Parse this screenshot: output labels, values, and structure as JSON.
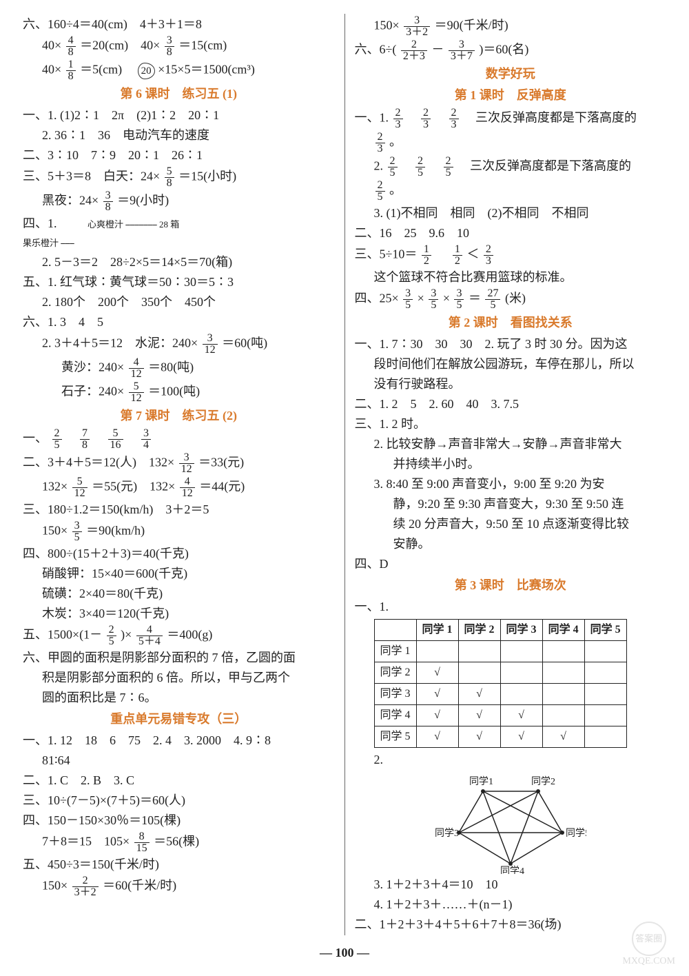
{
  "page_number": "100",
  "watermark": {
    "top": "答案圈",
    "url": "MXQE.COM"
  },
  "left": {
    "l1a": "六、160÷4＝40(cm)　4＋3＋1＝8",
    "l1b_pre": "40×",
    "l1b_mid": "＝20(cm)　40×",
    "l1b_post": "＝15(cm)",
    "l1c_pre": "40×",
    "l1c_mid": "＝5(cm)　",
    "l1c_carrot": "20",
    "l1c_post": "×15×5＝1500(cm³)",
    "sec6": "第 6 课时　练习五 (1)",
    "s6_1": "一、1. (1)2∶1　2π　(2)1∶2　20∶1",
    "s6_2": "2. 36∶1　36　电动汽车的速度",
    "s6_3": "二、3∶10　7∶9　20∶1　26∶1",
    "s6_4a": "三、5＋3＝8　白天：24×",
    "s6_4b": "＝15(小时)",
    "s6_5a": "黑夜：24×",
    "s6_5b": "＝9(小时)",
    "s6_6top": "心爽橙汁",
    "s6_6bot": "果乐橙汁",
    "s6_6num": "28 箱",
    "s6_6a": "四、1.",
    "s6_7": "2. 5－3＝2　28÷2×5＝14×5＝70(箱)",
    "s6_8": "五、1. 红气球∶黄气球＝50∶30＝5∶3",
    "s6_9": "2. 180个　200个　350个　450个",
    "s6_10": "六、1. 3　4　5",
    "s6_11a": "2. 3＋4＋5＝12　水泥：240×",
    "s6_11b": "＝60(吨)",
    "s6_12a": "黄沙：240×",
    "s6_12b": "＝80(吨)",
    "s6_13a": "石子：240×",
    "s6_13b": "＝100(吨)",
    "sec7": "第 7 课时　练习五 (2)",
    "s7_1": "一、",
    "s7_2a": "二、3＋4＋5＝12(人)　132×",
    "s7_2b": "＝33(元)",
    "s7_3a": "132×",
    "s7_3b": "＝55(元)　132×",
    "s7_3c": "＝44(元)",
    "s7_4": "三、180÷1.2＝150(km/h)　3＋2＝5",
    "s7_5a": "150×",
    "s7_5b": "＝90(km/h)",
    "s7_6": "四、800÷(15＋2＋3)＝40(千克)",
    "s7_7": "硝酸钾：15×40＝600(千克)",
    "s7_8": "硫磺：2×40＝80(千克)",
    "s7_9": "木炭：3×40＝120(千克)",
    "s7_10a": "五、1500×(1－",
    "s7_10b": ")×",
    "s7_10c": "＝400(g)",
    "s7_11": "六、甲圆的面积是阴影部分面积的 7 倍，乙圆的面",
    "s7_12": "积是阴影部分面积的 6 倍。所以，甲与乙两个",
    "s7_13": "圆的面积比是 7∶6。",
    "secErr": "重点单元易错专攻（三）",
    "e1": "一、1. 12　18　6　75　2. 4　3. 2000　4. 9∶8",
    "e2": "81∶64",
    "e3": "二、1. C　2. B　3. C",
    "e4": "三、10÷(7－5)×(7＋5)＝60(人)",
    "e5": "四、150－150×30％＝105(棵)",
    "e6a": "7＋8＝15　105×",
    "e6b": "＝56(棵)",
    "e7": "五、450÷3＝150(千米/时)",
    "e8a": "150×",
    "e8b": "＝60(千米/时)",
    "f48n": "4",
    "f48d": "8",
    "f38n": "3",
    "f38d": "8",
    "f18n": "1",
    "f18d": "8",
    "f58n": "5",
    "f58d": "8",
    "f312n": "3",
    "f312d": "12",
    "f412n": "4",
    "f412d": "12",
    "f512n": "5",
    "f512d": "12",
    "f25n": "2",
    "f25d": "5",
    "f78n": "7",
    "f78d": "8",
    "f516n": "5",
    "f516d": "16",
    "f34n": "3",
    "f34d": "4",
    "f35n": "3",
    "f35d": "5",
    "f454n": "4",
    "f454d": "5＋4",
    "f815n": "8",
    "f815d": "15",
    "f232n": "2",
    "f232d": "3＋2"
  },
  "right": {
    "r0a": "150×",
    "r0b": "＝90(千米/时)",
    "r1a": "六、6÷(",
    "r1b": "－",
    "r1c": ")＝60(名)",
    "secFun": "数学好玩",
    "secF1": "第 1 课时　反弹高度",
    "f1_1a": "一、1.",
    "f1_1b": "三次反弹高度都是下落高度的",
    "f1_1c": "。",
    "f1_2a": "2.",
    "f1_2b": "三次反弹高度都是下落高度的",
    "f1_2c": "。",
    "f1_3": "3. (1)不相同　相同　(2)不相同　不相同",
    "f1_4": "二、16　25　9.6　10",
    "f1_5a": "三、5÷10＝",
    "f1_5b": "　",
    "f1_5c": "＜",
    "f1_6": "这个篮球不符合比赛用篮球的标准。",
    "f1_7a": "四、25×",
    "f1_7b": "×",
    "f1_7c": "×",
    "f1_7d": "＝",
    "f1_7e": "(米)",
    "secF2": "第 2 课时　看图找关系",
    "f2_1": "一、1. 7∶30　30　30　2. 玩了 3 时 30 分。因为这",
    "f2_1b": "段时间他们在解放公园游玩，车停在那儿，所以",
    "f2_1c": "没有行驶路程。",
    "f2_2": "二、1. 2　5　2. 60　40　3. 7.5",
    "f2_3": "三、1. 2 时。",
    "f2_3b": "2. 比较安静→声音非常大→安静→声音非常大",
    "f2_3c": "并持续半小时。",
    "f2_3d": "3. 8:40 至 9:00 声音变小，9:00 至 9:20 为安",
    "f2_3e": "静，9:20 至 9:30 声音变大，9:30 至 9:50 连",
    "f2_3f": "续 20 分声音大，9:50 至 10 点逐渐变得比较",
    "f2_3g": "安静。",
    "f2_4": "四、D",
    "secF3": "第 3 课时　比赛场次",
    "f3_1": "一、1.",
    "table": {
      "headers": [
        "",
        "同学 1",
        "同学 2",
        "同学 3",
        "同学 4",
        "同学 5"
      ],
      "rows": [
        [
          "同学 1",
          "",
          "",
          "",
          "",
          ""
        ],
        [
          "同学 2",
          "√",
          "",
          "",
          "",
          ""
        ],
        [
          "同学 3",
          "√",
          "√",
          "",
          "",
          ""
        ],
        [
          "同学 4",
          "√",
          "√",
          "√",
          "",
          ""
        ],
        [
          "同学 5",
          "√",
          "√",
          "√",
          "√",
          ""
        ]
      ]
    },
    "f3_2": "2.",
    "pentagon_labels": [
      "同学1",
      "同学2",
      "同学5",
      "同学4",
      "同学3"
    ],
    "f3_3": "3. 1＋2＋3＋4＝10　10",
    "f3_4": "4. 1＋2＋3＋……＋(n－1)",
    "f3_5": "二、1＋2＋3＋4＋5＋6＋7＋8＝36(场)",
    "f332n": "3",
    "f332d": "3＋2",
    "f223n": "2",
    "f223d": "2＋3",
    "f337n": "3",
    "f337d": "3＋7",
    "f23n": "2",
    "f23d": "3",
    "f25n": "2",
    "f25d": "5",
    "f12n": "1",
    "f12d": "2",
    "f35n": "3",
    "f35d": "5",
    "f275n": "27",
    "f275d": "5"
  }
}
